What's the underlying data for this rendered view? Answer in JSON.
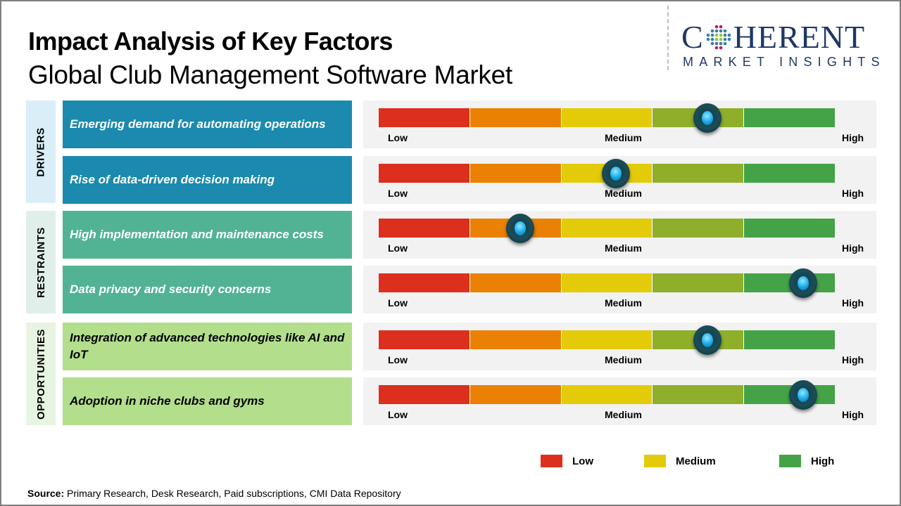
{
  "header": {
    "title": "Impact Analysis of Key Factors",
    "subtitle": "Global Club Management Software Market"
  },
  "logo": {
    "word_left": "C",
    "word_right": "HERENT",
    "tagline": "MARKET INSIGHTS",
    "icon": "dotted-globe-icon"
  },
  "scale_labels": {
    "low": "Low",
    "medium": "Medium",
    "high": "High"
  },
  "segment_colors": [
    "#dc2f1e",
    "#ea8103",
    "#e3cb0a",
    "#8fae2a",
    "#45a347"
  ],
  "chart_data": {
    "type": "gauge-rating",
    "title": "Impact Analysis of Key Factors",
    "subtitle": "Global Club Management Software Market",
    "scale": [
      "Low",
      "Medium",
      "High"
    ],
    "range": [
      0,
      1
    ],
    "categories": [
      {
        "name": "DRIVERS",
        "label_bg": "#d9eef7",
        "box_color": "#1b8aae",
        "text_color": "#ffffff",
        "factors": [
          {
            "label": "Emerging demand for automating operations",
            "impact": 0.72
          },
          {
            "label": "Rise of data-driven decision making",
            "impact": 0.52
          }
        ]
      },
      {
        "name": "RESTRAINTS",
        "label_bg": "#e0efea",
        "box_color": "#52b394",
        "text_color": "#ffffff",
        "factors": [
          {
            "label": "High implementation and maintenance costs",
            "impact": 0.31
          },
          {
            "label": "Data privacy and security concerns",
            "impact": 0.93
          }
        ]
      },
      {
        "name": "OPPORTUNITIES",
        "label_bg": "#e8f4e2",
        "box_color": "#b3de8c",
        "text_color": "#000000",
        "factors": [
          {
            "label": "Integration of advanced technologies like AI and IoT",
            "impact": 0.72
          },
          {
            "label": "Adoption in niche clubs and gyms",
            "impact": 0.93
          }
        ]
      }
    ],
    "legend": [
      {
        "label": "Low",
        "color": "#dc2f1e"
      },
      {
        "label": "Medium",
        "color": "#e3cb0a"
      },
      {
        "label": "High",
        "color": "#45a347"
      }
    ],
    "legend_position": "bottom-right"
  },
  "footer": {
    "source_label": "Source:",
    "source_text": " Primary Research, Desk Research, Paid subscriptions, CMI Data Repository"
  }
}
